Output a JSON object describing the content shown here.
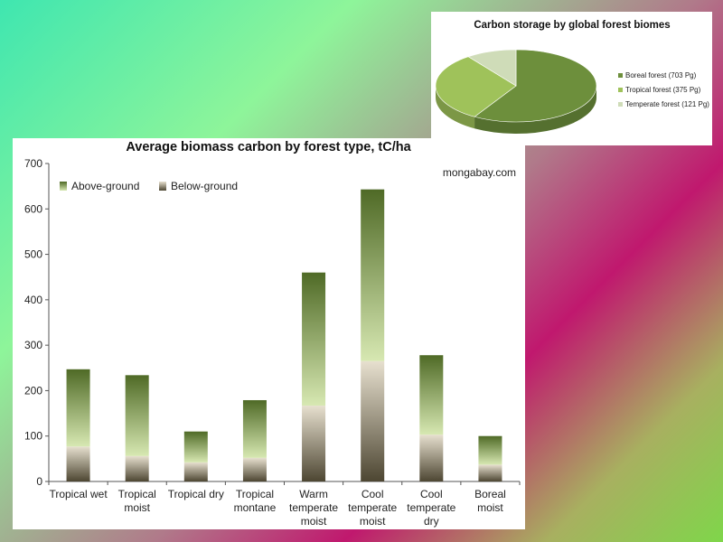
{
  "chart_data": [
    {
      "type": "bar",
      "stacked": true,
      "title": "Average biomass carbon by forest type, tC/ha",
      "annotation": "mongabay.com",
      "categories": [
        [
          "Tropical wet"
        ],
        [
          "Tropical",
          "moist"
        ],
        [
          "Tropical dry"
        ],
        [
          "Tropical",
          "montane"
        ],
        [
          "Warm",
          "temperate",
          "moist"
        ],
        [
          "Cool",
          "temperate",
          "moist"
        ],
        [
          "Cool",
          "temperate",
          "dry"
        ],
        [
          "Boreal",
          "moist"
        ]
      ],
      "series": [
        {
          "name": "Below-ground",
          "values": [
            77,
            56,
            42,
            52,
            167,
            265,
            103,
            37
          ]
        },
        {
          "name": "Above-ground",
          "values": [
            170,
            178,
            68,
            127,
            293,
            378,
            175,
            63
          ]
        }
      ],
      "ylim": [
        0,
        700
      ],
      "yticks": [
        0,
        100,
        200,
        300,
        400,
        500,
        600,
        700
      ],
      "legend": "top-left",
      "grid": false
    },
    {
      "type": "pie",
      "title": "Carbon storage by global forest biomes",
      "labels": [
        "Boreal forest (703 Pg)",
        "Tropical forest (375 Pg)",
        "Temperate forest (121 Pg)"
      ],
      "values": [
        703,
        375,
        121
      ],
      "colors": [
        "#6d8f3c",
        "#9fc25a",
        "#cfdcb8"
      ],
      "legend": "right"
    }
  ]
}
